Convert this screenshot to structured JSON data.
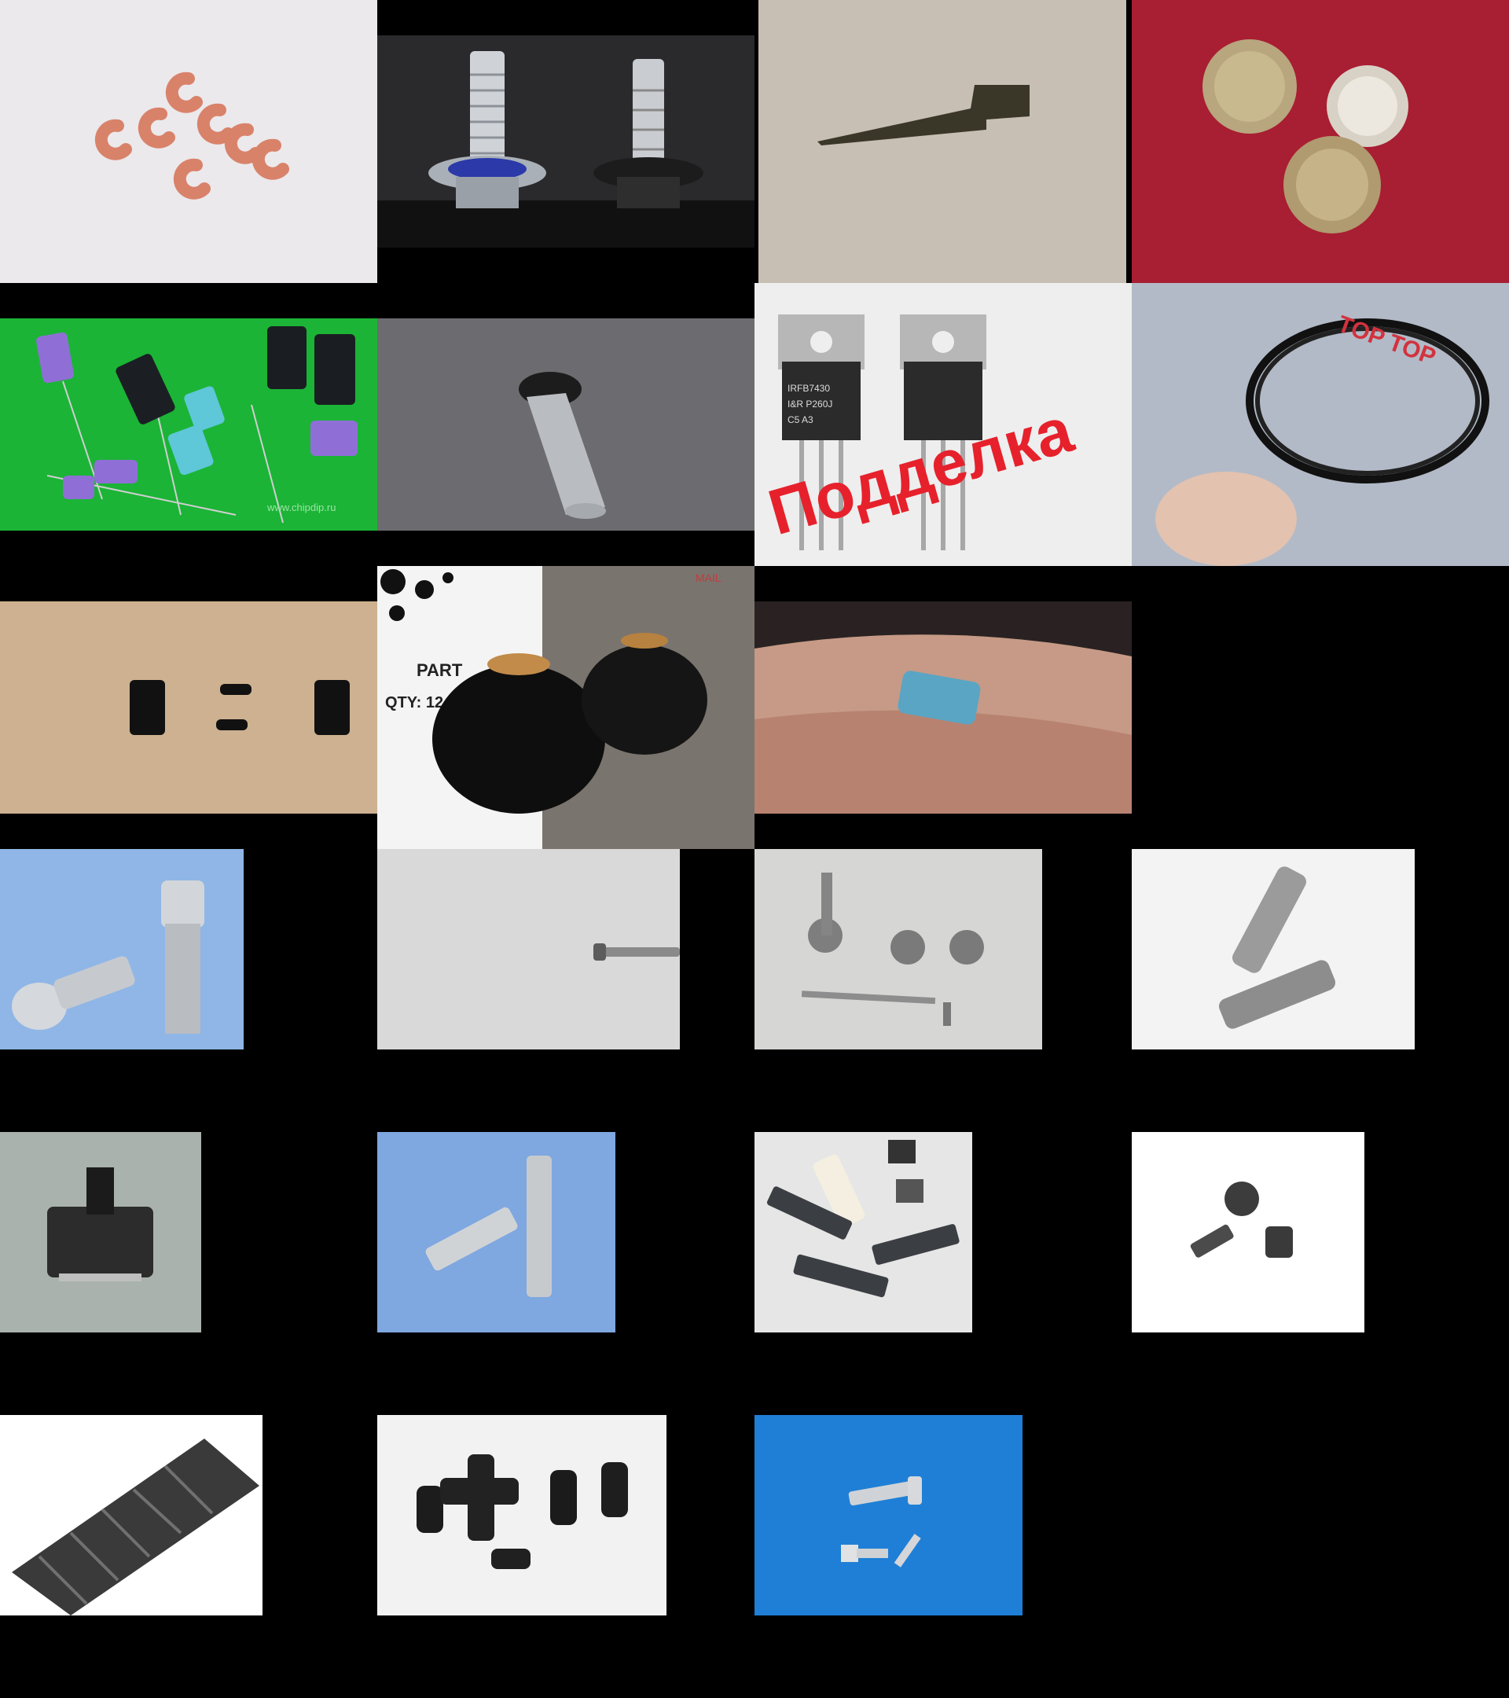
{
  "grid": {
    "rows": 6,
    "cols": 4,
    "background": "#000000"
  },
  "tiles": [
    {
      "id": "r1c1",
      "subject": "copper crimp beads",
      "bg": "#ebe9ec"
    },
    {
      "id": "r1c2",
      "subject": "oil drain bolts with washers",
      "bg": "#2a2a2c"
    },
    {
      "id": "r1c3",
      "subject": "metal blade part",
      "bg": "#c7bfb3"
    },
    {
      "id": "r1c4",
      "subject": "metal can transistors",
      "bg": "#a81e32"
    },
    {
      "id": "r2c1",
      "subject": "electrolytic capacitors",
      "bg": "#1bb436",
      "watermark": "www.chipdip.ru"
    },
    {
      "id": "r2c2",
      "subject": "metal pin with rubber cap",
      "bg": "#5e5e64"
    },
    {
      "id": "r2c3",
      "subject": "fake transistors",
      "bg": "#eeeeee",
      "overlay_text": "Подделка",
      "chip_text_1": "IRFB7430",
      "chip_text_2": "I&R  P260J",
      "chip_text_3": "C5    A3"
    },
    {
      "id": "r2c4",
      "subject": "piston rings in bag",
      "bg": "#9aa3b2",
      "bag_text": "TOP TOP"
    },
    {
      "id": "r3c1",
      "subject": "black plastic connectors",
      "bg": "#cdb190"
    },
    {
      "id": "r3c2",
      "subject": "rubber bushings",
      "bg": "#7a746e",
      "box_text_1": "PART",
      "box_text_2": "QTY: 12 P",
      "box_text_3": "MAIL"
    },
    {
      "id": "r3c3",
      "subject": "capacitor held in fingers",
      "bg": "#b88a78"
    },
    {
      "id": "r4c1",
      "subject": "socket cap screws",
      "bg": "#8fb6e6"
    },
    {
      "id": "r4c2",
      "subject": "small machine screw",
      "bg": "#d9d9d9"
    },
    {
      "id": "r4c3",
      "subject": "phillips screws assortment",
      "bg": "#d6d6d4"
    },
    {
      "id": "r4c4",
      "subject": "hex socket screws",
      "bg": "#f3f3f3"
    },
    {
      "id": "r5c1",
      "subject": "rotary switch component",
      "bg": "#a9b2ac"
    },
    {
      "id": "r5c2",
      "subject": "countersunk screws",
      "bg": "#7fa7e0"
    },
    {
      "id": "r5c3",
      "subject": "nylon and black bolts with nuts",
      "bg": "#e6e6e6"
    },
    {
      "id": "r5c4",
      "subject": "black socket cap screws",
      "bg": "#ffffff"
    },
    {
      "id": "r6c1",
      "subject": "set screw close-up",
      "bg": "#ffffff"
    },
    {
      "id": "r6c2",
      "subject": "black torx screws and cross",
      "bg": "#f2f2f2"
    },
    {
      "id": "r6c3",
      "subject": "bolts on blue background",
      "bg": "#1f7fd6"
    }
  ]
}
